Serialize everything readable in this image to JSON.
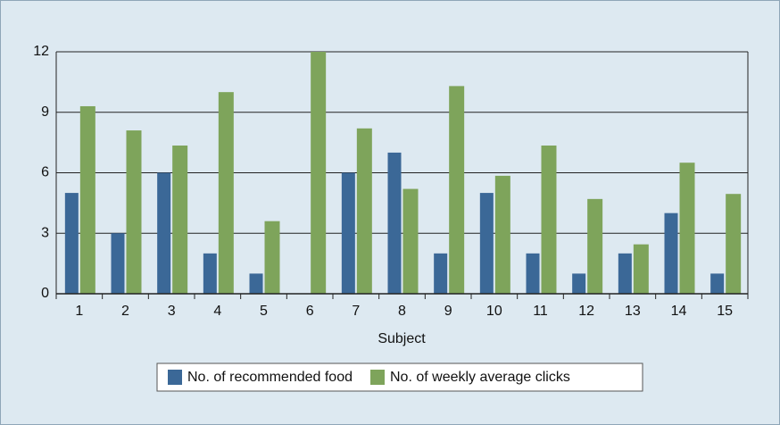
{
  "chart_data": {
    "type": "bar",
    "xlabel": "Subject",
    "categories": [
      "1",
      "2",
      "3",
      "4",
      "5",
      "6",
      "7",
      "8",
      "9",
      "10",
      "11",
      "12",
      "13",
      "14",
      "15"
    ],
    "series": [
      {
        "name": "No. of recommended food",
        "color": "#3b6897",
        "values": [
          5,
          3,
          6,
          2,
          1,
          0,
          6,
          7,
          2,
          5,
          2,
          1,
          2,
          4,
          1
        ]
      },
      {
        "name": "No. of weekly average clicks",
        "color": "#7ea45b",
        "values": [
          9.3,
          8.1,
          7.35,
          10,
          3.6,
          12,
          8.2,
          5.2,
          10.3,
          5.85,
          7.35,
          4.7,
          2.45,
          6.5,
          4.95
        ]
      }
    ],
    "ylim": [
      0,
      12
    ],
    "yticks": [
      0,
      3,
      6,
      9,
      12
    ],
    "grid": true,
    "legend": "bottom"
  }
}
